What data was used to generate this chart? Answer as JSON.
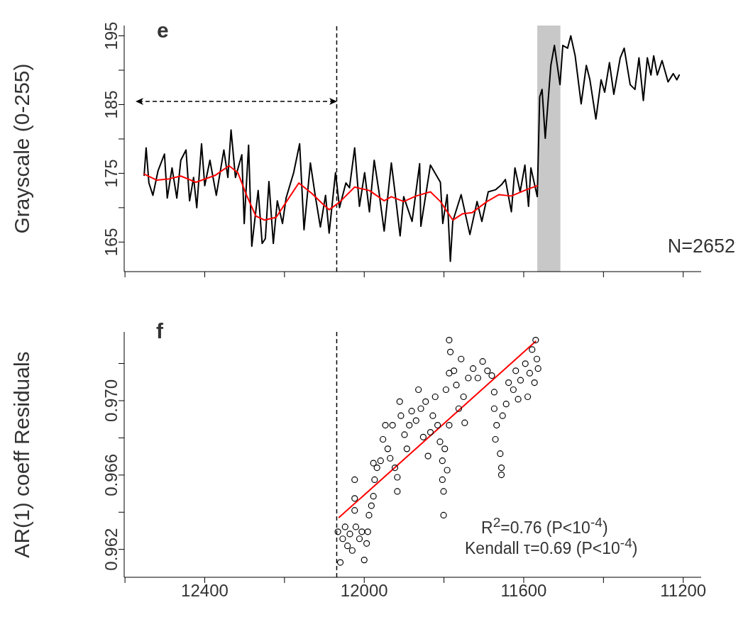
{
  "chart_data": [
    {
      "type": "line",
      "ylabel": "Grayscale (0-255)",
      "xlim": [
        12602,
        11155
      ],
      "xticks": [
        {
          "value": 12600,
          "label": null
        },
        12400,
        {
          "value": 12200,
          "label": null
        },
        12000,
        {
          "value": 11800,
          "label": null
        },
        11600,
        {
          "value": 11400,
          "label": null
        },
        11200
      ],
      "ylim": [
        160.7,
        196.5
      ],
      "yticks": [
        165,
        {
          "value": 170,
          "label": null
        },
        175,
        {
          "value": 180,
          "label": null
        },
        185,
        {
          "value": 190,
          "label": null
        },
        195
      ],
      "tick_labels": "y",
      "marker": "none",
      "line_style": "solid",
      "annotations": [
        "e",
        "N=2652"
      ],
      "bands": [
        {
          "axis": "x",
          "from": 11566,
          "to": 11508,
          "color": "#c8c8c8"
        }
      ],
      "ref_lines": [
        {
          "axis": "x",
          "value": 12069,
          "line_style": "dashed",
          "color": "#000000"
        }
      ],
      "series": [
        {
          "color": "#000000",
          "x": [
            12552,
            12547,
            12540,
            12530,
            12517,
            12501,
            12494,
            12482,
            12470,
            12460,
            12447,
            12438,
            12428,
            12420,
            12408,
            12400,
            12387,
            12371,
            12352,
            12342,
            12334,
            12323,
            12307,
            12301,
            12290,
            12282,
            12266,
            12256,
            12248,
            12239,
            12228,
            12218,
            12205,
            12196,
            12177,
            12162,
            12151,
            12135,
            12123,
            12110,
            12097,
            12088,
            12072,
            12062,
            12046,
            12037,
            12024,
            12012,
            11999,
            11987,
            11975,
            11963,
            11950,
            11932,
            11923,
            11910,
            11901,
            11880,
            11861,
            11858,
            11834,
            11809,
            11803,
            11792,
            11784,
            11778,
            11757,
            11735,
            11717,
            11705,
            11689,
            11671,
            11655,
            11646,
            11631,
            11622,
            11609,
            11597,
            11588,
            11582,
            11566,
            11560,
            11554,
            11546,
            11532,
            11523,
            11509,
            11502,
            11490,
            11482,
            11471,
            11456,
            11443,
            11434,
            11419,
            11406,
            11397,
            11385,
            11374,
            11358,
            11348,
            11333,
            11321,
            11311,
            11300,
            11290,
            11281,
            11274,
            11265,
            11253,
            11238,
            11225,
            11216,
            11210
          ],
          "values": [
            174.7,
            178.7,
            173.6,
            171.8,
            175.4,
            177.8,
            171.4,
            175.8,
            171.4,
            176.9,
            178.4,
            171.0,
            174.4,
            170.0,
            179.3,
            173.2,
            176.9,
            171.8,
            178.4,
            174.4,
            181.3,
            174.4,
            177.7,
            167.7,
            179.1,
            164.4,
            172.5,
            164.8,
            165.5,
            173.8,
            164.8,
            171.0,
            167.7,
            171.4,
            175.1,
            179.3,
            166.8,
            176.5,
            171.8,
            167.2,
            171.8,
            166.3,
            175.1,
            170.0,
            173.6,
            172.9,
            178.7,
            170.2,
            175.1,
            169.4,
            176.9,
            172.3,
            166.6,
            176.5,
            172.3,
            165.9,
            171.6,
            168.0,
            176.4,
            167.3,
            176.2,
            173.7,
            167.7,
            171.9,
            162.2,
            168.0,
            171.9,
            166.1,
            170.9,
            168.0,
            172.3,
            172.6,
            173.4,
            174.1,
            169.4,
            175.8,
            172.3,
            176.2,
            170.2,
            175.8,
            171.6,
            186.1,
            187.2,
            180.1,
            190.7,
            193.6,
            187.9,
            193.6,
            193.2,
            195.0,
            192.1,
            185.1,
            190.7,
            188.6,
            182.9,
            188.6,
            186.8,
            191.1,
            186.5,
            191.8,
            193.2,
            187.9,
            187.2,
            191.8,
            185.6,
            191.8,
            189.3,
            192.1,
            189.3,
            191.4,
            188.3,
            189.5,
            188.6,
            189.3
          ]
        },
        {
          "color": "#ff0000",
          "x": [
            12552,
            12520,
            12489,
            12460,
            12422,
            12374,
            12339,
            12317,
            12295,
            12272,
            12250,
            12221,
            12196,
            12164,
            12132,
            12107,
            12088,
            12062,
            12024,
            11987,
            11950,
            11932,
            11901,
            11870,
            11834,
            11809,
            11778,
            11754,
            11729,
            11692,
            11662,
            11631,
            11594,
            11566
          ],
          "values": [
            174.9,
            174.0,
            174.2,
            174.6,
            173.7,
            174.7,
            176.1,
            175.1,
            171.8,
            168.8,
            168.2,
            168.6,
            170.8,
            173.6,
            172.1,
            170.7,
            169.7,
            170.8,
            173.0,
            172.5,
            171.0,
            171.6,
            170.9,
            171.7,
            172.3,
            170.9,
            168.2,
            169.1,
            169.3,
            170.9,
            171.9,
            171.7,
            172.6,
            173.2
          ]
        }
      ]
    },
    {
      "type": "scatter",
      "ylabel": "AR(1) coeff Residuals",
      "xlim": [
        12602,
        11155
      ],
      "xticks": [
        {
          "value": 12600,
          "label": null
        },
        12400,
        {
          "value": 12200,
          "label": null
        },
        12000,
        {
          "value": 11800,
          "label": null
        },
        11600,
        {
          "value": 11400,
          "label": null
        },
        11200
      ],
      "ylim": [
        0.9605,
        0.9737
      ],
      "yticks": [
        0.962,
        {
          "value": 0.964,
          "label": null
        },
        0.966,
        {
          "value": 0.968,
          "label": null
        },
        {
          "value": 0.97,
          "label": "0.970"
        },
        {
          "value": 0.972,
          "label": null
        }
      ],
      "marker": "circle",
      "annotations": [
        "f",
        "R$^{2}$=0.76 (P<10$^{-4}$)",
        "Kendall τ=0.69 (P<10$^{-4}$)"
      ],
      "ref_lines": [
        {
          "axis": "x",
          "value": 12069,
          "line_style": "dashed",
          "color": "#000000"
        }
      ],
      "series": [
        {
          "color": "#000000",
          "x": [
            12066,
            12060,
            12054,
            12048,
            12042,
            12036,
            12030,
            12024,
            12024,
            12024,
            12021,
            12012,
            12006,
            12000,
            11994,
            11991,
            11988,
            11982,
            11977,
            11974,
            11977,
            11968,
            11959,
            11953,
            11947,
            11941,
            11935,
            11929,
            11923,
            11917,
            11917,
            11911,
            11908,
            11899,
            11893,
            11887,
            11881,
            11870,
            11864,
            11858,
            11852,
            11846,
            11840,
            11834,
            11828,
            11822,
            11816,
            11810,
            11804,
            11804,
            11801,
            11801,
            11798,
            11795,
            11792,
            11787,
            11787,
            11787,
            11784,
            11775,
            11769,
            11763,
            11757,
            11751,
            11748,
            11739,
            11727,
            11715,
            11703,
            11691,
            11680,
            11674,
            11674,
            11671,
            11668,
            11659,
            11656,
            11656,
            11653,
            11644,
            11638,
            11626,
            11620,
            11614,
            11608,
            11596,
            11590,
            11585,
            11579,
            11573,
            11570,
            11567,
            11564
          ],
          "values": [
            0.96295,
            0.9613,
            0.96257,
            0.96321,
            0.96219,
            0.96283,
            0.96194,
            0.96575,
            0.96474,
            0.9641,
            0.96321,
            0.96257,
            0.96295,
            0.96143,
            0.96232,
            0.96295,
            0.96384,
            0.96435,
            0.96486,
            0.96575,
            0.96664,
            0.96639,
            0.96677,
            0.96792,
            0.96868,
            0.96741,
            0.9669,
            0.96868,
            0.96639,
            0.96512,
            0.96588,
            0.96995,
            0.96919,
            0.96817,
            0.96741,
            0.96868,
            0.96944,
            0.96893,
            0.97059,
            0.96957,
            0.96804,
            0.96995,
            0.96702,
            0.9683,
            0.96919,
            0.97021,
            0.96868,
            0.96779,
            0.96677,
            0.96575,
            0.96512,
            0.96384,
            0.96741,
            0.97059,
            0.96626,
            0.96868,
            0.97148,
            0.97326,
            0.97262,
            0.97161,
            0.97084,
            0.96957,
            0.97224,
            0.97021,
            0.96881,
            0.97122,
            0.97173,
            0.97122,
            0.97211,
            0.97161,
            0.97135,
            0.97046,
            0.96957,
            0.96792,
            0.96868,
            0.96715,
            0.96639,
            0.96601,
            0.96919,
            0.96982,
            0.97097,
            0.97059,
            0.97161,
            0.97008,
            0.9711,
            0.97199,
            0.97021,
            0.97148,
            0.97275,
            0.97097,
            0.97326,
            0.97224,
            0.97173
          ]
        },
        {
          "type": "line",
          "color": "#ff0000",
          "marker": "none",
          "x": [
            12063,
            11570
          ],
          "values": [
            0.96372,
            0.97319
          ]
        }
      ]
    }
  ]
}
